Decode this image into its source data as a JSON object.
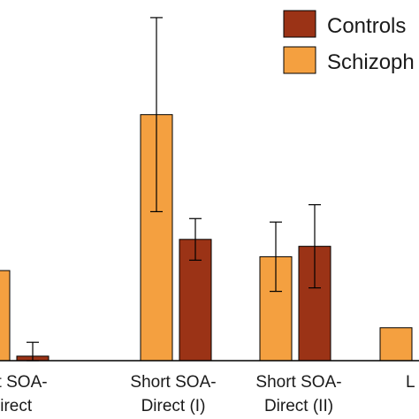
{
  "chart_data": {
    "type": "bar",
    "categories": [
      [
        "Short SOA-",
        "Indirect"
      ],
      [
        "Short SOA-",
        "Direct (I)"
      ],
      [
        "Short SOA-",
        "Direct (II)"
      ],
      [
        "L",
        ""
      ]
    ],
    "ylim": [
      0,
      1
    ],
    "grid": false,
    "legend_position": "top-right",
    "series": [
      {
        "name": "Schizophrenia",
        "color": "#F4A040",
        "values": [
          0.26,
          0.71,
          0.3,
          0.095
        ],
        "errors": [
          0.12,
          0.28,
          0.1,
          null
        ]
      },
      {
        "name": "Controls",
        "color": "#9B3316",
        "values": [
          0.013,
          0.35,
          0.33,
          null
        ],
        "errors": [
          0.04,
          0.06,
          0.12,
          null
        ]
      }
    ],
    "legend": [
      {
        "label": "Controls",
        "color": "#9B3316"
      },
      {
        "label": "Schizoph",
        "color": "#F4A040"
      }
    ]
  }
}
